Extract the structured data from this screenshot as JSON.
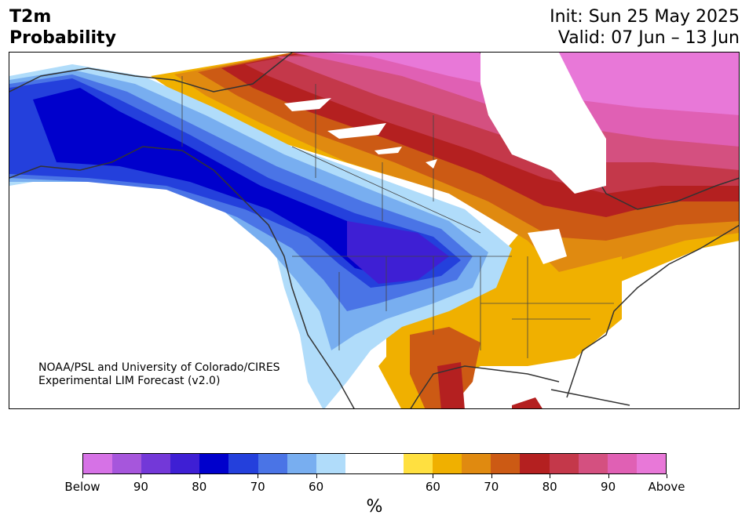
{
  "title": {
    "line1": "T2m",
    "line2": "Probability"
  },
  "dates": {
    "init": "Init: Sun 25 May 2025",
    "valid": "Valid: 07 Jun – 13 Jun"
  },
  "credit": {
    "line1": "NOAA/PSL and University of Colorado/CIRES",
    "line2": "Experimental LIM Forecast (v2.0)"
  },
  "colorbar": {
    "colors": [
      "#d672e6",
      "#a656dc",
      "#7338d8",
      "#3e1fd4",
      "#0000cc",
      "#2440dc",
      "#4a74e6",
      "#78aef0",
      "#b0dcfa",
      "#ffffff",
      "#ffffff",
      "#ffe040",
      "#f0b000",
      "#e08a10",
      "#cc5a14",
      "#b42020",
      "#c4384a",
      "#d45080",
      "#e060b4",
      "#e878d8"
    ],
    "labels": [
      "Below",
      "90",
      "80",
      "70",
      "60",
      "",
      "60",
      "70",
      "80",
      "90",
      "Above"
    ],
    "unit": "%"
  },
  "palette": {
    "land_outline": "#333333",
    "ocean": "#ffffff",
    "border": "#444444"
  }
}
